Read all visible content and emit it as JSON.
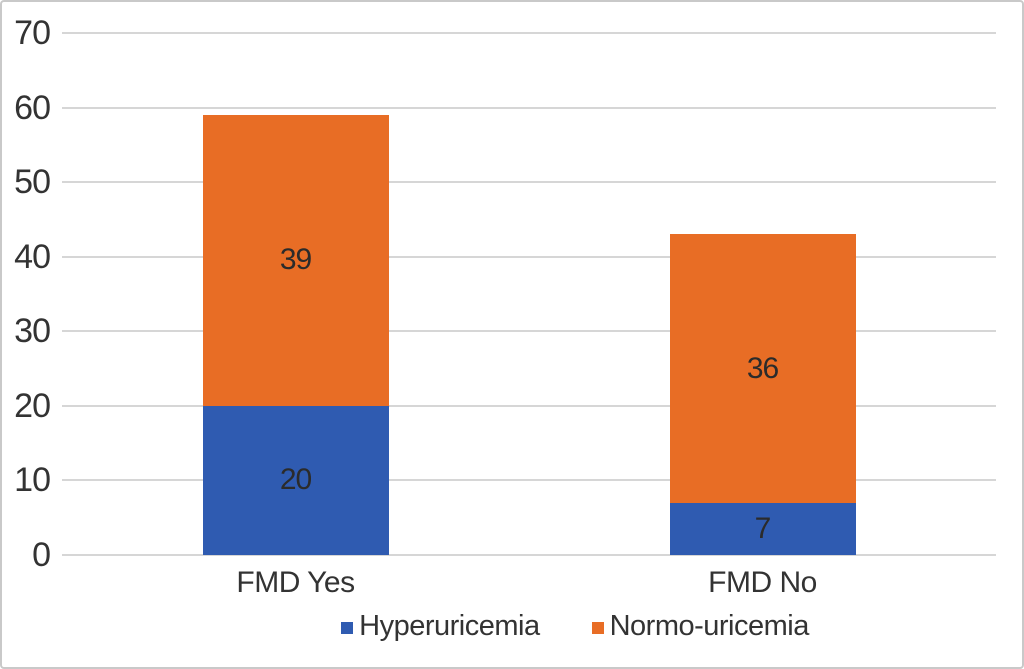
{
  "chart_data": {
    "type": "bar",
    "stacked": true,
    "title": "",
    "xlabel": "",
    "ylabel": "",
    "categories": [
      "FMD Yes",
      "FMD No"
    ],
    "series": [
      {
        "name": "Hyperuricemia",
        "color": "#2f5bb1",
        "values": [
          20,
          7
        ]
      },
      {
        "name": "Normo-uricemia",
        "color": "#e86d25",
        "values": [
          39,
          36
        ]
      }
    ],
    "stack_totals": [
      59,
      43
    ],
    "ylim": [
      0,
      70
    ],
    "yticks": [
      0,
      10,
      20,
      30,
      40,
      50,
      60,
      70
    ],
    "ytick_labels": [
      "0",
      "10",
      "20",
      "30",
      "40",
      "50",
      "60",
      "70"
    ],
    "grid": true,
    "gridline_color": "#d6d6d6",
    "legend_position": "bottom",
    "data_label_color": "#2b2b2b",
    "axis_text_color": "#333333"
  }
}
